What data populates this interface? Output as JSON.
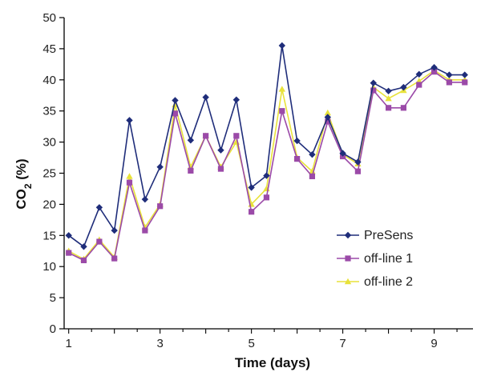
{
  "chart_data": {
    "type": "line",
    "xlabel": "Time (days)",
    "ylabel_main": "CO",
    "ylabel_sub": "2",
    "ylabel_tail": " (%)",
    "xlim": [
      0.9,
      9.85
    ],
    "ylim": [
      0,
      50
    ],
    "x_ticks": [
      1,
      3,
      5,
      7,
      9
    ],
    "y_ticks": [
      0,
      5,
      10,
      15,
      20,
      25,
      30,
      35,
      40,
      45,
      50
    ],
    "legend_position": "bottom-right",
    "grid": false,
    "x": [
      1.0,
      1.33,
      1.67,
      2.0,
      2.33,
      2.67,
      3.0,
      3.33,
      3.67,
      4.0,
      4.33,
      4.67,
      5.0,
      5.33,
      5.67,
      6.0,
      6.33,
      6.67,
      7.0,
      7.33,
      7.67,
      8.0,
      8.33,
      8.67,
      9.0,
      9.33,
      9.67
    ],
    "series": [
      {
        "name": "PreSens",
        "color": "#1f2d7a",
        "marker": "diamond",
        "values": [
          15.0,
          13.2,
          19.5,
          15.8,
          33.5,
          20.8,
          26.0,
          36.7,
          30.3,
          37.2,
          28.7,
          36.8,
          22.7,
          24.6,
          45.5,
          30.2,
          28.0,
          34.0,
          28.2,
          26.8,
          39.5,
          38.2,
          38.8,
          40.9,
          42.0,
          40.8,
          40.8
        ]
      },
      {
        "name": "off-line 1",
        "color": "#9b4aa8",
        "marker": "square",
        "values": [
          12.2,
          11.0,
          14.0,
          11.3,
          23.5,
          15.8,
          19.7,
          34.6,
          25.4,
          31.0,
          25.7,
          31.0,
          18.8,
          21.1,
          35.0,
          27.3,
          24.5,
          33.3,
          27.7,
          25.3,
          38.3,
          35.5,
          35.5,
          39.2,
          41.3,
          39.6,
          39.6
        ]
      },
      {
        "name": "off-line 2",
        "color": "#e8e23a",
        "marker": "triangle",
        "values": [
          12.5,
          11.2,
          14.3,
          11.5,
          24.5,
          16.3,
          20.0,
          36.0,
          26.0,
          31.0,
          26.0,
          30.0,
          20.0,
          22.5,
          38.5,
          27.5,
          25.3,
          34.7,
          28.0,
          26.5,
          38.8,
          37.0,
          38.3,
          39.8,
          41.5,
          40.0,
          40.0
        ]
      }
    ]
  }
}
